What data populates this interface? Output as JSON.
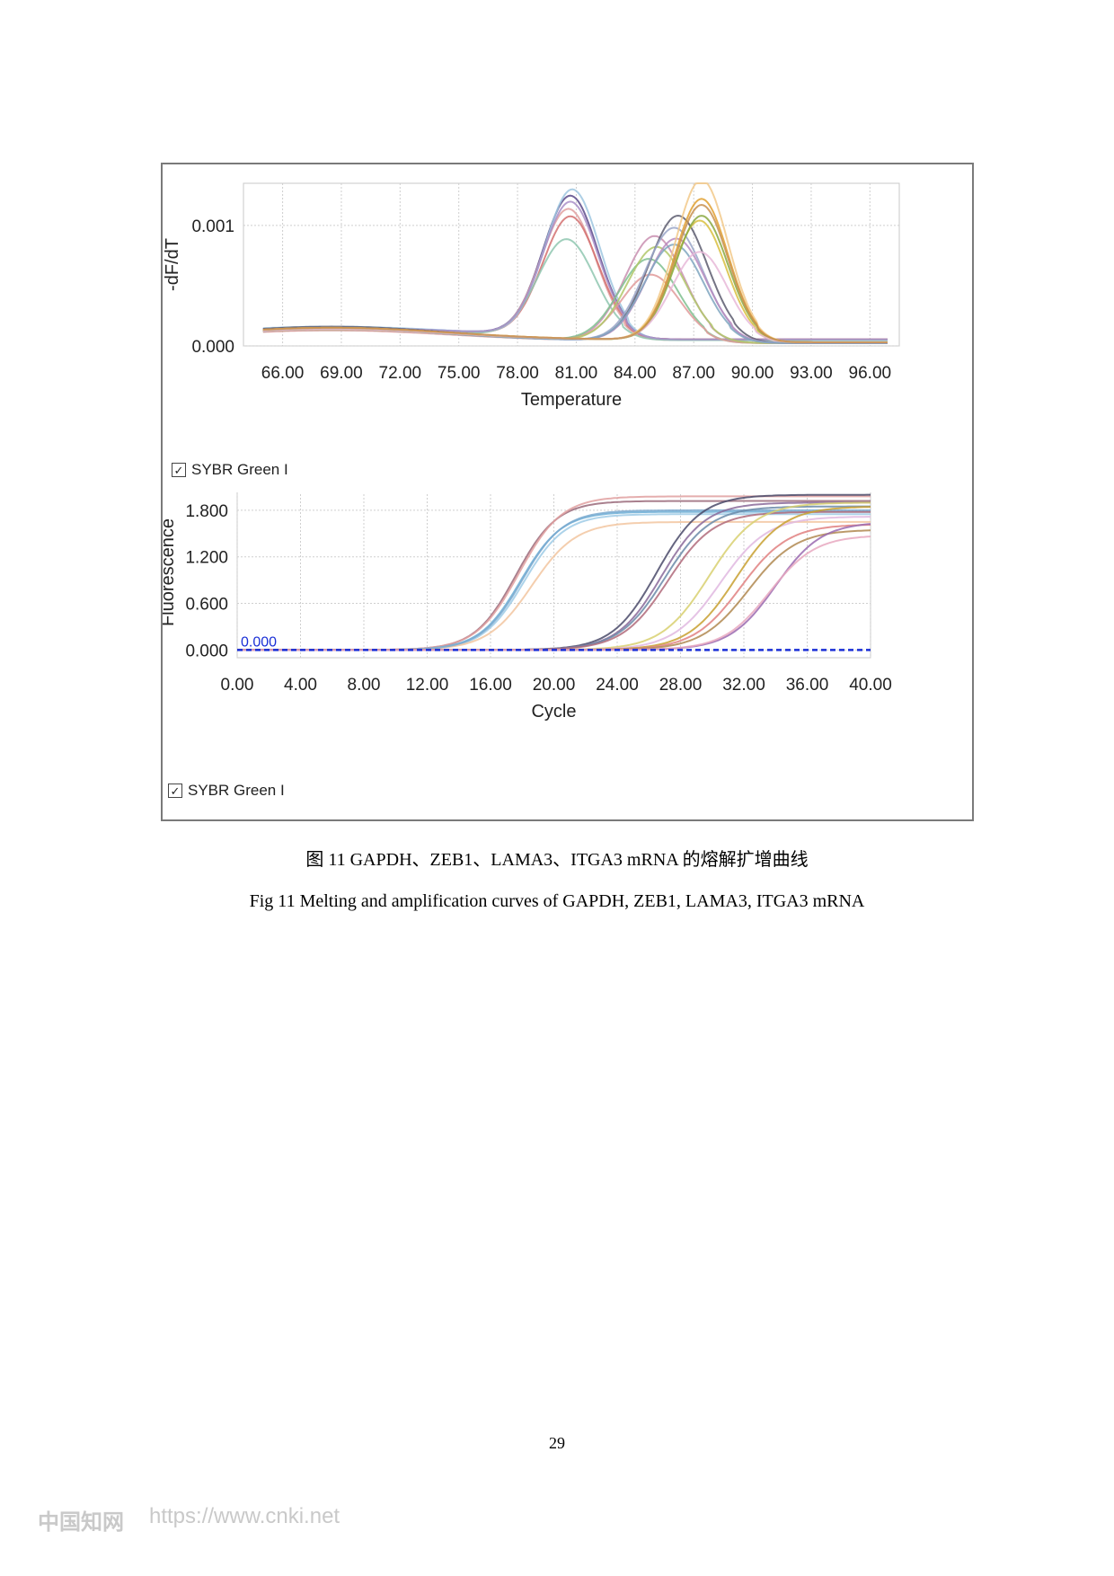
{
  "chart_data": [
    {
      "type": "line",
      "title": "",
      "xlabel": "Temperature",
      "ylabel": "-dF/dT",
      "xlim": [
        64,
        97.5
      ],
      "ylim": [
        0,
        0.00135
      ],
      "x_ticks": [
        "66.00",
        "69.00",
        "72.00",
        "75.00",
        "78.00",
        "81.00",
        "84.00",
        "87.00",
        "90.00",
        "93.00",
        "96.00"
      ],
      "y_ticks": [
        "0.000",
        "0.001"
      ],
      "grid": true,
      "legend": "SYBR Green I",
      "series": [
        {
          "color": "#5a4a8a",
          "peak_x": 80.7,
          "peak_y": 0.00115,
          "width": 1.4,
          "baseline": 9e-05,
          "hump_x": 68.5,
          "hump_y": 0.00015
        },
        {
          "color": "#e0a0a0",
          "peak_x": 80.6,
          "peak_y": 0.00105,
          "width": 1.4,
          "baseline": 8e-05,
          "hump_x": 68.5,
          "hump_y": 0.00014
        },
        {
          "color": "#d47070",
          "peak_x": 80.7,
          "peak_y": 0.00098,
          "width": 1.4,
          "baseline": 9e-05,
          "hump_x": 68.5,
          "hump_y": 0.00014
        },
        {
          "color": "#9fc7e0",
          "peak_x": 80.8,
          "peak_y": 0.00121,
          "width": 1.4,
          "baseline": 8e-05,
          "hump_x": 68.5,
          "hump_y": 0.00016
        },
        {
          "color": "#8fc7b0",
          "peak_x": 80.5,
          "peak_y": 0.0008,
          "width": 1.45,
          "baseline": 8e-05,
          "hump_x": 68.5,
          "hump_y": 0.00013
        },
        {
          "color": "#a98fc8",
          "peak_x": 80.7,
          "peak_y": 0.0011,
          "width": 1.4,
          "baseline": 9e-05,
          "hump_x": 68.5,
          "hump_y": 0.00015
        },
        {
          "color": "#c98fb0",
          "peak_x": 85.0,
          "peak_y": 0.00087,
          "width": 1.5,
          "baseline": 4e-05,
          "hump_x": 68.5,
          "hump_y": 0.00015
        },
        {
          "color": "#7fbf8f",
          "peak_x": 84.7,
          "peak_y": 0.00068,
          "width": 1.5,
          "baseline": 4e-05,
          "hump_x": 68.5,
          "hump_y": 0.00014
        },
        {
          "color": "#e09a9a",
          "peak_x": 84.8,
          "peak_y": 0.00055,
          "width": 1.5,
          "baseline": 4e-05,
          "hump_x": 68.5,
          "hump_y": 0.00013
        },
        {
          "color": "#b0c86a",
          "peak_x": 85.1,
          "peak_y": 0.00078,
          "width": 1.5,
          "baseline": 4e-05,
          "hump_x": 68.5,
          "hump_y": 0.00014
        },
        {
          "color": "#5c5c6e",
          "peak_x": 86.2,
          "peak_y": 0.00104,
          "width": 1.5,
          "baseline": 4e-05,
          "hump_x": 68.5,
          "hump_y": 0.00016
        },
        {
          "color": "#9aa6c8",
          "peak_x": 86.0,
          "peak_y": 0.00094,
          "width": 1.5,
          "baseline": 4e-05,
          "hump_x": 68.5,
          "hump_y": 0.00015
        },
        {
          "color": "#b98bbf",
          "peak_x": 86.1,
          "peak_y": 0.00085,
          "width": 1.5,
          "baseline": 4e-05,
          "hump_x": 68.5,
          "hump_y": 0.00014
        },
        {
          "color": "#7fa6c0",
          "peak_x": 86.0,
          "peak_y": 0.0008,
          "width": 1.5,
          "baseline": 4e-05,
          "hump_x": 68.5,
          "hump_y": 0.00014
        },
        {
          "color": "#f2c98a",
          "peak_x": 87.4,
          "peak_y": 0.00133,
          "width": 1.35,
          "baseline": 5e-05,
          "hump_x": 68.5,
          "hump_y": 0.00015
        },
        {
          "color": "#e0a030",
          "peak_x": 87.4,
          "peak_y": 0.00117,
          "width": 1.35,
          "baseline": 5e-05,
          "hump_x": 68.5,
          "hump_y": 0.00015
        },
        {
          "color": "#d8c040",
          "peak_x": 87.3,
          "peak_y": 0.00099,
          "width": 1.35,
          "baseline": 5e-05,
          "hump_x": 68.5,
          "hump_y": 0.00014
        },
        {
          "color": "#8aa840",
          "peak_x": 87.4,
          "peak_y": 0.00103,
          "width": 1.35,
          "baseline": 5e-05,
          "hump_x": 68.5,
          "hump_y": 0.00014
        },
        {
          "color": "#e8b8d8",
          "peak_x": 87.3,
          "peak_y": 0.00073,
          "width": 1.4,
          "baseline": 5e-05,
          "hump_x": 68.5,
          "hump_y": 0.00014
        },
        {
          "color": "#c89050",
          "peak_x": 87.4,
          "peak_y": 0.00112,
          "width": 1.35,
          "baseline": 5e-05,
          "hump_x": 68.5,
          "hump_y": 0.00015
        }
      ]
    },
    {
      "type": "line",
      "title": "",
      "xlabel": "Cycle",
      "ylabel": "Fluorescence",
      "xlim": [
        0,
        40
      ],
      "ylim": [
        -0.1,
        2.1
      ],
      "x_ticks": [
        "0.00",
        "4.00",
        "8.00",
        "12.00",
        "16.00",
        "20.00",
        "24.00",
        "28.00",
        "32.00",
        "36.00",
        "40.00"
      ],
      "y_ticks": [
        "0.000",
        "0.600",
        "1.200",
        "1.800"
      ],
      "grid": true,
      "legend": "SYBR Green I",
      "threshold": {
        "value": 0.0,
        "label": "0.000",
        "color": "#1a2fd6"
      },
      "series": [
        {
          "color": "#9a6a7a",
          "midpoint": 17.6,
          "plateau": 1.92,
          "slope": 1.3
        },
        {
          "color": "#e0a0a0",
          "midpoint": 17.8,
          "plateau": 1.98,
          "slope": 1.35
        },
        {
          "color": "#6baed6",
          "midpoint": 17.9,
          "plateau": 1.78,
          "slope": 1.3
        },
        {
          "color": "#9fcbe6",
          "midpoint": 18.1,
          "plateau": 1.75,
          "slope": 1.3
        },
        {
          "color": "#f2c6a0",
          "midpoint": 18.6,
          "plateau": 1.65,
          "slope": 1.4
        },
        {
          "color": "#7aa9cf",
          "midpoint": 18.0,
          "plateau": 1.8,
          "slope": 1.3
        },
        {
          "color": "#4a4a6a",
          "midpoint": 26.5,
          "plateau": 2.0,
          "slope": 1.4
        },
        {
          "color": "#8a6a9a",
          "midpoint": 26.8,
          "plateau": 1.9,
          "slope": 1.4
        },
        {
          "color": "#6a8aa8",
          "midpoint": 27.0,
          "plateau": 1.85,
          "slope": 1.45
        },
        {
          "color": "#b06a7a",
          "midpoint": 27.2,
          "plateau": 1.78,
          "slope": 1.45
        },
        {
          "color": "#d8d070",
          "midpoint": 29.8,
          "plateau": 1.9,
          "slope": 1.5
        },
        {
          "color": "#e0b8e0",
          "midpoint": 30.5,
          "plateau": 1.72,
          "slope": 1.5
        },
        {
          "color": "#c8a030",
          "midpoint": 31.5,
          "plateau": 1.85,
          "slope": 1.5
        },
        {
          "color": "#e08080",
          "midpoint": 31.8,
          "plateau": 1.62,
          "slope": 1.5
        },
        {
          "color": "#b08850",
          "midpoint": 32.3,
          "plateau": 1.55,
          "slope": 1.5
        },
        {
          "color": "#9a6ab0",
          "midpoint": 34.0,
          "plateau": 1.65,
          "slope": 1.45
        },
        {
          "color": "#e8a8c0",
          "midpoint": 33.6,
          "plateau": 1.48,
          "slope": 1.45
        }
      ]
    }
  ],
  "captions": {
    "zh": "图 11 GAPDH、ZEB1、LAMA3、ITGA3 mRNA 的熔解扩增曲线",
    "en": "Fig 11 Melting and amplification curves of GAPDH, ZEB1, LAMA3, ITGA3 mRNA"
  },
  "page_number": "29",
  "watermark": {
    "logo": "中国知网",
    "url": "https://www.cnki.net"
  },
  "checkbox_mark": "✓"
}
